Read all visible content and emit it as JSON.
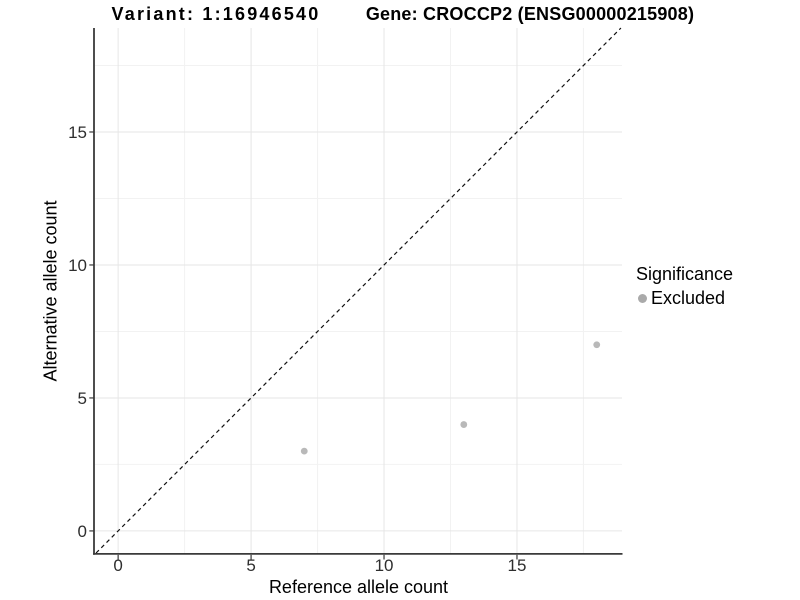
{
  "titles": {
    "variant": "Variant: 1:16946540",
    "gene": "Gene: CROCCP2 (ENSG00000215908)"
  },
  "chart_data": {
    "type": "scatter",
    "title_left": "Variant: 1:16946540",
    "title_right": "Gene: CROCCP2 (ENSG00000215908)",
    "xlabel": "Reference allele count",
    "ylabel": "Alternative allele count",
    "xlim": [
      -0.87,
      18.95
    ],
    "ylim": [
      -0.83,
      18.91
    ],
    "x_ticks": [
      0,
      5,
      10,
      15
    ],
    "y_ticks": [
      0,
      5,
      10,
      15
    ],
    "x_minor_gridlines": [
      2.5,
      7.5,
      12.5,
      17.5
    ],
    "y_minor_gridlines": [
      2.5,
      7.5,
      12.5,
      17.5
    ],
    "grid": true,
    "legend_position": "right",
    "series": [
      {
        "name": "Excluded",
        "color": "#b9b9b9",
        "points": [
          {
            "x": 7,
            "y": 3
          },
          {
            "x": 13,
            "y": 4
          },
          {
            "x": 18,
            "y": 7
          }
        ]
      }
    ],
    "reference_line": {
      "type": "identity y=x",
      "style": "dashed",
      "color": "#111111"
    },
    "colors": {
      "grid_major": "#e6e6e6",
      "grid_minor": "#f2f2f2",
      "axis_line": "#3a3a3a",
      "tick_text": "#2e2e2e",
      "point": "#b9b9b9",
      "legend_marker": "#aaaaaa"
    }
  },
  "legend": {
    "title": "Significance",
    "items": [
      {
        "label": "Excluded",
        "marker_color": "#aaaaaa"
      }
    ]
  }
}
